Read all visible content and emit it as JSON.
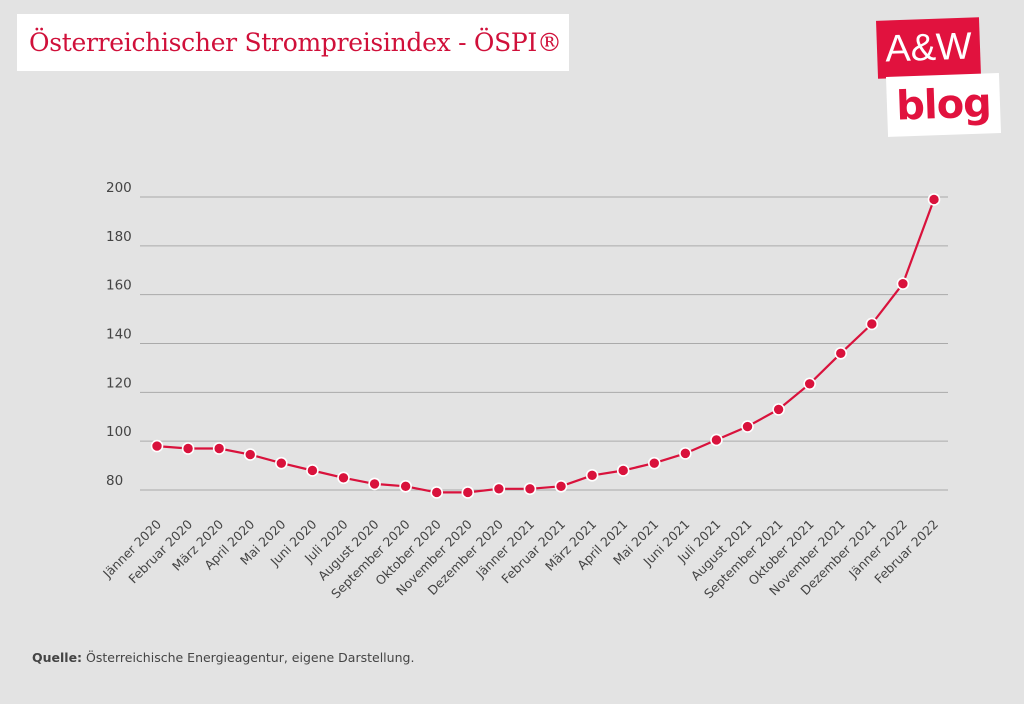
{
  "header": {
    "title": "Österreichischer Strompreisindex - ÖSPI®"
  },
  "logo": {
    "line1": "A&W",
    "line2": "blog"
  },
  "footer": {
    "source_label": "Quelle:",
    "source_text": " Österreichische Energieagentur, eigene Darstellung."
  },
  "colors": {
    "accent": "#d9123c",
    "background": "#e3e3e3",
    "grid": "#aaaaaa",
    "text": "#444444"
  },
  "chart_data": {
    "type": "line",
    "title": "Österreichischer Strompreisindex - ÖSPI®",
    "xlabel": "",
    "ylabel": "",
    "ylim": [
      80,
      200
    ],
    "yticks": [
      80,
      100,
      120,
      140,
      160,
      180,
      200
    ],
    "grid": true,
    "legend": "none",
    "categories": [
      "Jänner 2020",
      "Februar 2020",
      "März 2020",
      "April 2020",
      "Mai 2020",
      "Juni 2020",
      "Juli 2020",
      "August 2020",
      "September 2020",
      "Oktober 2020",
      "November 2020",
      "Dezember 2020",
      "Jänner 2021",
      "Februar 2021",
      "März 2021",
      "April 2021",
      "Mai 2021",
      "Juni 2021",
      "Juli 2021",
      "August 2021",
      "September 2021",
      "Oktober 2021",
      "November 2021",
      "Dezember 2021",
      "Jänner 2022",
      "Februar 2022"
    ],
    "series": [
      {
        "values": [
          98,
          97,
          97,
          94.5,
          91,
          88,
          85,
          82.5,
          81.5,
          79,
          79,
          80.5,
          80.5,
          81.5,
          86,
          88,
          91,
          95,
          100.5,
          106,
          113,
          123.5,
          136,
          148,
          164.5,
          199
        ]
      }
    ]
  }
}
